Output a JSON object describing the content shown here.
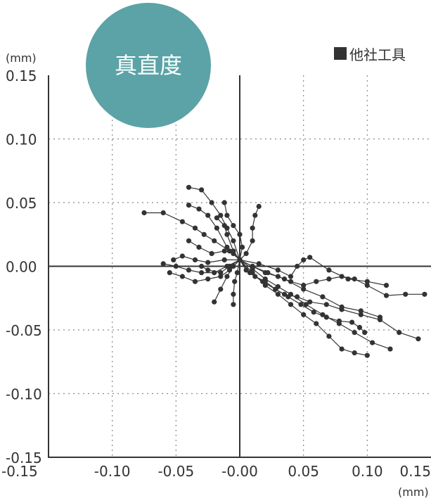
{
  "colors": {
    "badge": "#5BA3A6",
    "ink": "#333333",
    "grid": "#888888"
  },
  "chart_data": {
    "type": "scatter",
    "title": "真直度",
    "legend": {
      "label": "他社工具",
      "marker": "filled-square",
      "placement": "top-right"
    },
    "x_unit": "(mm)",
    "y_unit": "(mm)",
    "xlim": [
      -0.15,
      0.15
    ],
    "ylim": [
      -0.15,
      0.15
    ],
    "x_ticks": [
      -0.15,
      -0.1,
      -0.05,
      0.0,
      0.05,
      0.1,
      0.15
    ],
    "y_ticks": [
      0.15,
      0.1,
      0.05,
      0.0,
      -0.05,
      -0.1,
      -0.15
    ],
    "x_tick_labels": [
      "-0.15",
      "-0.10",
      "-0.05",
      "-0.00",
      "0.05",
      "0.10",
      "0.15"
    ],
    "y_tick_labels": [
      "0.15",
      "0.10",
      "0.05",
      "0.00",
      "-0.05",
      "-0.10",
      "-0.15"
    ],
    "grid": true,
    "crosshair_value": 0.0,
    "series": [
      {
        "trajectories": [
          [
            [
              0.0,
              0.005
            ],
            [
              -0.008,
              0.012
            ],
            [
              -0.02,
              0.02
            ],
            [
              -0.028,
              0.025
            ],
            [
              -0.035,
              0.03
            ],
            [
              -0.045,
              0.035
            ],
            [
              -0.06,
              0.042
            ],
            [
              -0.075,
              0.042
            ]
          ],
          [
            [
              0.0,
              0.005
            ],
            [
              -0.01,
              0.015
            ],
            [
              -0.018,
              0.03
            ],
            [
              -0.025,
              0.04
            ],
            [
              -0.032,
              0.045
            ],
            [
              -0.04,
              0.048
            ]
          ],
          [
            [
              0.0,
              0.005
            ],
            [
              -0.005,
              0.02
            ],
            [
              -0.01,
              0.03
            ],
            [
              -0.015,
              0.04
            ],
            [
              -0.022,
              0.05
            ],
            [
              -0.03,
              0.06
            ],
            [
              -0.04,
              0.062
            ]
          ],
          [
            [
              0.0,
              0.005
            ],
            [
              -0.01,
              0.0
            ],
            [
              -0.02,
              -0.005
            ],
            [
              -0.03,
              -0.005
            ],
            [
              -0.04,
              -0.003
            ],
            [
              -0.05,
              0.0
            ],
            [
              -0.06,
              0.002
            ]
          ],
          [
            [
              0.0,
              0.005
            ],
            [
              -0.008,
              -0.003
            ],
            [
              -0.015,
              -0.008
            ],
            [
              -0.025,
              -0.01
            ],
            [
              -0.035,
              -0.012
            ],
            [
              -0.045,
              -0.008
            ],
            [
              -0.055,
              -0.005
            ]
          ],
          [
            [
              0.0,
              0.005
            ],
            [
              -0.005,
              0.01
            ],
            [
              -0.012,
              0.012
            ],
            [
              -0.022,
              0.01
            ],
            [
              -0.032,
              0.015
            ],
            [
              -0.04,
              0.02
            ]
          ],
          [
            [
              0.0,
              0.005
            ],
            [
              -0.005,
              0.012
            ],
            [
              -0.01,
              0.025
            ],
            [
              -0.012,
              0.032
            ],
            [
              -0.018,
              0.038
            ]
          ],
          [
            [
              0.0,
              0.005
            ],
            [
              0.002,
              0.015
            ],
            [
              0.0,
              0.025
            ],
            [
              -0.005,
              0.032
            ],
            [
              -0.01,
              0.04
            ],
            [
              -0.012,
              0.05
            ]
          ],
          [
            [
              0.0,
              0.005
            ],
            [
              0.005,
              0.01
            ],
            [
              0.01,
              0.02
            ],
            [
              0.01,
              0.03
            ],
            [
              0.012,
              0.04
            ],
            [
              0.015,
              0.047
            ]
          ],
          [
            [
              0.0,
              0.005
            ],
            [
              -0.005,
              0.0
            ],
            [
              -0.01,
              -0.008
            ],
            [
              -0.015,
              -0.018
            ],
            [
              -0.02,
              -0.028
            ]
          ],
          [
            [
              0.0,
              0.005
            ],
            [
              -0.008,
              0.0
            ],
            [
              -0.015,
              -0.005
            ],
            [
              -0.025,
              -0.003
            ],
            [
              -0.03,
              0.0
            ]
          ],
          [
            [
              0.0,
              0.005
            ],
            [
              0.01,
              0.0
            ],
            [
              0.02,
              -0.005
            ],
            [
              0.03,
              -0.008
            ],
            [
              0.04,
              -0.012
            ],
            [
              0.05,
              -0.015
            ],
            [
              0.06,
              -0.012
            ],
            [
              0.07,
              -0.01
            ],
            [
              0.08,
              -0.008
            ],
            [
              0.09,
              -0.01
            ],
            [
              0.1,
              -0.015
            ],
            [
              0.115,
              -0.023
            ],
            [
              0.13,
              -0.022
            ],
            [
              0.145,
              -0.022
            ]
          ],
          [
            [
              0.0,
              0.005
            ],
            [
              0.01,
              0.0
            ],
            [
              0.022,
              -0.005
            ],
            [
              0.035,
              -0.01
            ],
            [
              0.05,
              -0.018
            ],
            [
              0.065,
              -0.024
            ],
            [
              0.08,
              -0.032
            ],
            [
              0.095,
              -0.035
            ],
            [
              0.11,
              -0.04
            ]
          ],
          [
            [
              0.0,
              0.005
            ],
            [
              0.01,
              -0.002
            ],
            [
              0.02,
              -0.01
            ],
            [
              0.03,
              -0.016
            ],
            [
              0.04,
              -0.022
            ],
            [
              0.052,
              -0.03
            ],
            [
              0.065,
              -0.038
            ],
            [
              0.078,
              -0.045
            ],
            [
              0.09,
              -0.052
            ],
            [
              0.104,
              -0.06
            ],
            [
              0.118,
              -0.065
            ]
          ],
          [
            [
              0.0,
              0.005
            ],
            [
              0.015,
              0.002
            ],
            [
              0.03,
              -0.003
            ],
            [
              0.04,
              -0.008
            ],
            [
              0.045,
              0.0
            ],
            [
              0.05,
              0.005
            ],
            [
              0.055,
              0.007
            ],
            [
              0.07,
              -0.003
            ],
            [
              0.085,
              -0.01
            ],
            [
              0.1,
              -0.012
            ],
            [
              0.115,
              -0.015
            ]
          ],
          [
            [
              0.0,
              0.005
            ],
            [
              0.01,
              -0.005
            ],
            [
              0.02,
              -0.015
            ],
            [
              0.03,
              -0.022
            ],
            [
              0.04,
              -0.03
            ],
            [
              0.05,
              -0.038
            ],
            [
              0.06,
              -0.045
            ],
            [
              0.07,
              -0.055
            ],
            [
              0.08,
              -0.065
            ],
            [
              0.09,
              -0.068
            ],
            [
              0.1,
              -0.07
            ]
          ],
          [
            [
              0.0,
              0.005
            ],
            [
              0.008,
              -0.005
            ],
            [
              0.018,
              -0.012
            ],
            [
              0.028,
              -0.018
            ],
            [
              0.038,
              -0.024
            ],
            [
              0.048,
              -0.03
            ],
            [
              0.058,
              -0.036
            ],
            [
              0.068,
              -0.04
            ],
            [
              0.078,
              -0.043
            ],
            [
              0.088,
              -0.044
            ],
            [
              0.094,
              -0.048
            ],
            [
              0.098,
              -0.052
            ]
          ],
          [
            [
              0.0,
              0.005
            ],
            [
              0.005,
              -0.003
            ],
            [
              0.012,
              -0.008
            ],
            [
              0.02,
              -0.012
            ],
            [
              0.028,
              -0.018
            ],
            [
              0.035,
              -0.022
            ],
            [
              0.045,
              -0.024
            ],
            [
              0.055,
              -0.028
            ],
            [
              0.068,
              -0.03
            ],
            [
              0.08,
              -0.034
            ],
            [
              0.095,
              -0.038
            ],
            [
              0.11,
              -0.042
            ],
            [
              0.125,
              -0.052
            ],
            [
              0.14,
              -0.057
            ]
          ],
          [
            [
              0.0,
              0.005
            ],
            [
              -0.002,
              -0.005
            ],
            [
              -0.004,
              -0.012
            ],
            [
              -0.005,
              -0.022
            ],
            [
              -0.005,
              -0.03
            ]
          ],
          [
            [
              0.0,
              0.005
            ],
            [
              -0.012,
              0.005
            ],
            [
              -0.025,
              0.003
            ],
            [
              -0.035,
              0.005
            ],
            [
              -0.045,
              0.008
            ],
            [
              -0.052,
              0.005
            ]
          ]
        ]
      }
    ]
  }
}
